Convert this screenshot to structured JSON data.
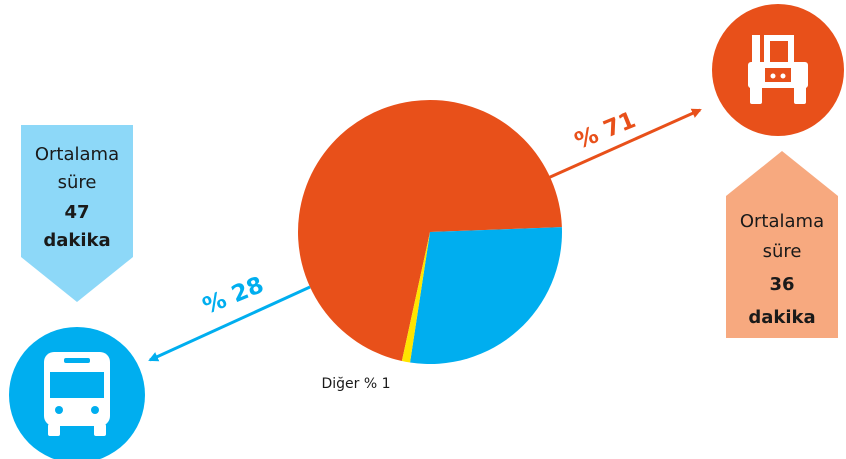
{
  "chart_data": {
    "type": "pie",
    "slices": [
      {
        "label": "% 71",
        "value": 71,
        "color": "#E8501A",
        "mode": "truck"
      },
      {
        "label": "% 28",
        "value": 28,
        "color": "#00AEEF",
        "mode": "bus"
      },
      {
        "label": "Diğer % 1",
        "value": 1,
        "color": "#FFE500",
        "mode": "other"
      }
    ]
  },
  "callouts": {
    "bus": {
      "line1": "Ortalama",
      "line2": "süre",
      "value": "47",
      "unit": "dakika",
      "color": "#8DD8F8"
    },
    "truck": {
      "line1": "Ortalama",
      "line2": "süre",
      "value": "36",
      "unit": "dakika",
      "color": "#F7A97F"
    }
  },
  "icons": {
    "truck": {
      "name": "truck-icon",
      "color": "#E8501A"
    },
    "bus": {
      "name": "bus-icon",
      "color": "#00AEEF"
    }
  }
}
